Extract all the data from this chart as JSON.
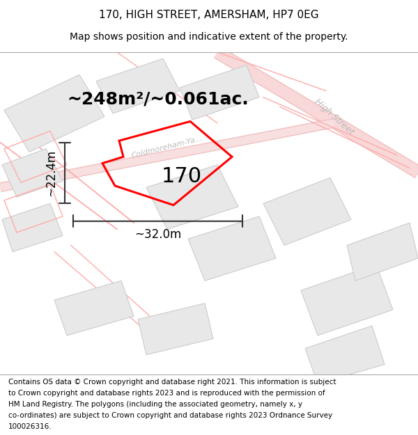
{
  "title_line1": "170, HIGH STREET, AMERSHAM, HP7 0EG",
  "title_line2": "Map shows position and indicative extent of the property.",
  "footer_lines": [
    "Contains OS data © Crown copyright and database right 2021. This information is subject",
    "to Crown copyright and database rights 2023 and is reproduced with the permission of",
    "HM Land Registry. The polygons (including the associated geometry, namely x, y",
    "co-ordinates) are subject to Crown copyright and database rights 2023 Ordnance Survey",
    "100026316."
  ],
  "area_label": "~248m²/~0.061ac.",
  "number_label": "170",
  "width_label": "~32.0m",
  "height_label": "~22.4m",
  "street_label1": "High Street",
  "street_label2": "Coldmoreham-Ya...",
  "map_bg": "#ffffff",
  "building_fill": "#e8e8e8",
  "building_edge": "#cccccc",
  "plot_color": "#ff0000",
  "dim_line_color": "#333333",
  "road_line_color": "#ffaaaa",
  "title_fontsize": 11,
  "subtitle_fontsize": 10,
  "footer_fontsize": 7.5,
  "area_fontsize": 18,
  "number_fontsize": 22,
  "dim_fontsize": 12,
  "street_fontsize": 9
}
